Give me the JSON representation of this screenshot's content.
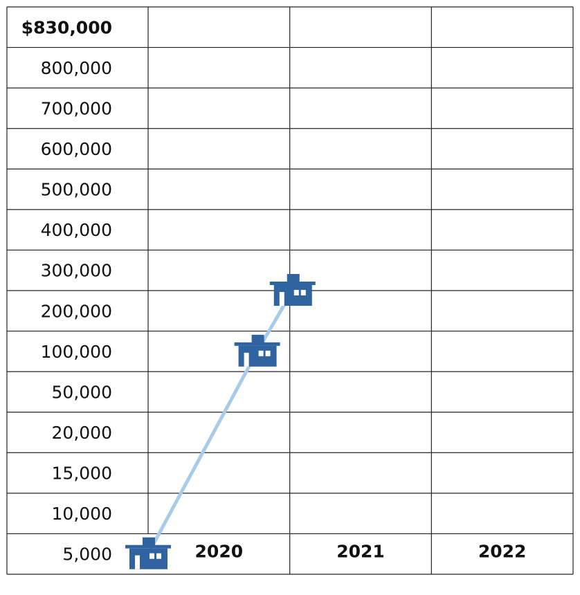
{
  "chart_data": {
    "type": "line",
    "categories": [
      "2020",
      "2021",
      "2022"
    ],
    "x": [
      2020,
      2020.77,
      2021.02
    ],
    "values": [
      5000,
      100000,
      250000
    ],
    "xlim": [
      2020,
      2023
    ],
    "yticks": [
      {
        "value": 830000,
        "label": "$830,000"
      },
      {
        "value": 800000,
        "label": "800,000"
      },
      {
        "value": 700000,
        "label": "700,000"
      },
      {
        "value": 600000,
        "label": "600,000"
      },
      {
        "value": 500000,
        "label": "500,000"
      },
      {
        "value": 400000,
        "label": "400,000"
      },
      {
        "value": 300000,
        "label": "300,000"
      },
      {
        "value": 200000,
        "label": "200,000"
      },
      {
        "value": 100000,
        "label": "100,000"
      },
      {
        "value": 50000,
        "label": "50,000"
      },
      {
        "value": 20000,
        "label": "20,000"
      },
      {
        "value": 15000,
        "label": "15,000"
      },
      {
        "value": 10000,
        "label": "10,000"
      },
      {
        "value": 5000,
        "label": "5,000"
      }
    ],
    "line_color": "#a9cbea",
    "marker_color": "#2f64a1"
  }
}
